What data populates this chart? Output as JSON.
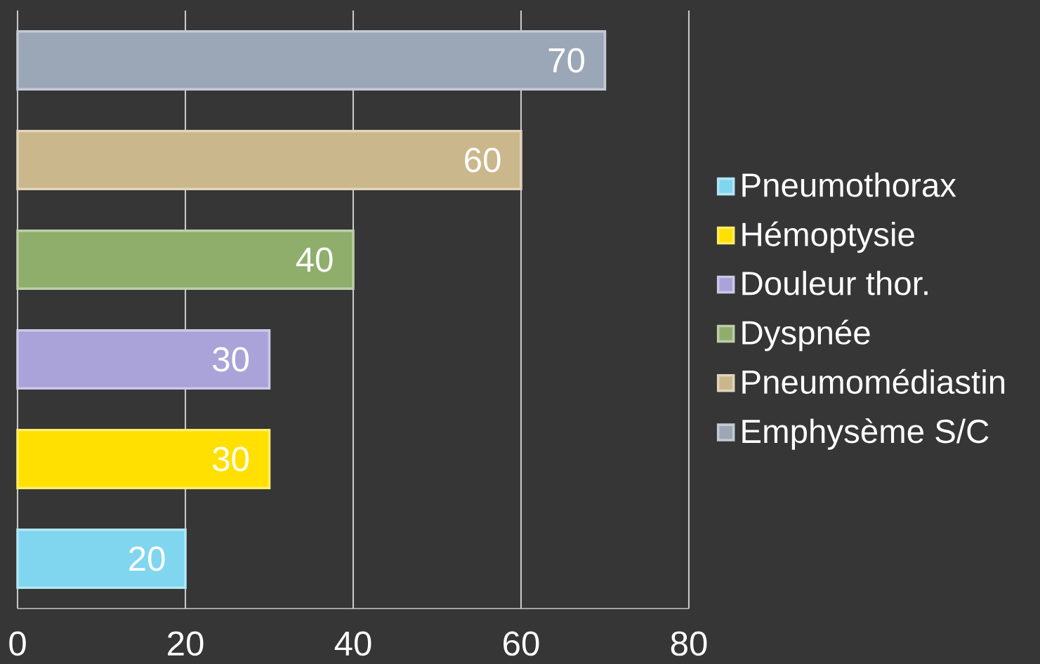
{
  "chart_data": {
    "type": "bar",
    "orientation": "horizontal",
    "categories": [
      null
    ],
    "series": [
      {
        "name": "Pneumothorax",
        "color": "#7fd6ee",
        "values": [
          20
        ]
      },
      {
        "name": "Hémoptysie",
        "color": "#ffe000",
        "values": [
          30
        ]
      },
      {
        "name": "Douleur thor.",
        "color": "#a9a3d9",
        "values": [
          30
        ]
      },
      {
        "name": "Dyspnée",
        "color": "#8fae6c",
        "values": [
          40
        ]
      },
      {
        "name": "Pneumomédiastin",
        "color": "#cbb78c",
        "values": [
          60
        ]
      },
      {
        "name": "Emphysème S/C",
        "color": "#9ba7b7",
        "values": [
          70
        ]
      }
    ],
    "xlim": [
      0,
      80
    ],
    "xticks": [
      0,
      20,
      40,
      60,
      80
    ],
    "grid": "x",
    "legend": "right",
    "data_labels": true
  }
}
